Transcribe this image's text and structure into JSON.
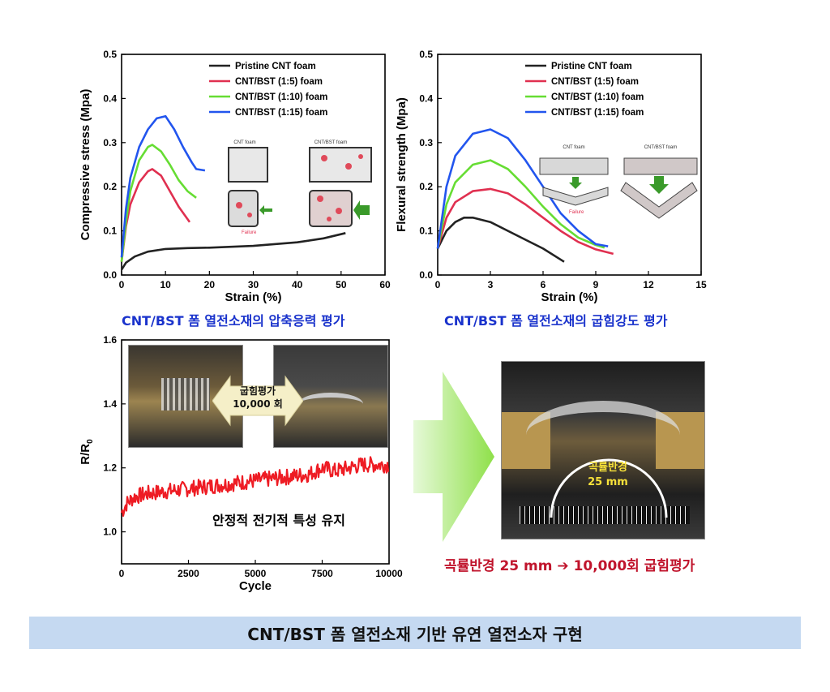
{
  "chart_data": [
    {
      "type": "line",
      "xlabel": "Strain (%)",
      "ylabel": "Compressive stress (Mpa)",
      "xlim": [
        0,
        60
      ],
      "ylim": [
        0,
        0.5
      ],
      "xticks": [
        "0",
        "10",
        "20",
        "30",
        "40",
        "50",
        "60"
      ],
      "yticks": [
        "0.0",
        "0.1",
        "0.2",
        "0.3",
        "0.4",
        "0.5"
      ],
      "legend_position": "top-right",
      "series": [
        {
          "name": "Pristine CNT foam",
          "color": "#222222",
          "x": [
            0,
            1,
            3,
            6,
            10,
            15,
            20,
            30,
            40,
            46,
            51
          ],
          "y": [
            0.012,
            0.028,
            0.042,
            0.053,
            0.059,
            0.061,
            0.062,
            0.066,
            0.074,
            0.083,
            0.095
          ]
        },
        {
          "name": "CNT/BST (1:5) foam",
          "color": "#e03050",
          "x": [
            0,
            1,
            2,
            4,
            6,
            7,
            9,
            11,
            13,
            15.5
          ],
          "y": [
            0.03,
            0.11,
            0.16,
            0.21,
            0.235,
            0.24,
            0.225,
            0.19,
            0.155,
            0.12
          ]
        },
        {
          "name": "CNT/BST (1:10) foam",
          "color": "#66dd33",
          "x": [
            0,
            1,
            2,
            4,
            6,
            7,
            9,
            11,
            13,
            15,
            17
          ],
          "y": [
            0.03,
            0.12,
            0.19,
            0.26,
            0.29,
            0.295,
            0.28,
            0.25,
            0.215,
            0.19,
            0.175
          ]
        },
        {
          "name": "CNT/BST (1:15) foam",
          "color": "#2255ee",
          "x": [
            0,
            1,
            2,
            4,
            6,
            8,
            10,
            12,
            14,
            16,
            17,
            19
          ],
          "y": [
            0.04,
            0.15,
            0.22,
            0.29,
            0.33,
            0.355,
            0.36,
            0.33,
            0.29,
            0.255,
            0.24,
            0.237
          ]
        }
      ],
      "inset": {
        "labels": [
          "CNT foam",
          "CNT/BST foam",
          "Failure"
        ]
      }
    },
    {
      "type": "line",
      "xlabel": "Strain (%)",
      "ylabel": "Flexural strength (Mpa)",
      "xlim": [
        0,
        15
      ],
      "ylim": [
        0,
        0.5
      ],
      "xticks": [
        "0",
        "3",
        "6",
        "9",
        "12",
        "15"
      ],
      "yticks": [
        "0.0",
        "0.1",
        "0.2",
        "0.3",
        "0.4",
        "0.5"
      ],
      "legend_position": "top-right",
      "series": [
        {
          "name": "Pristine CNT foam",
          "color": "#222222",
          "x": [
            0,
            0.5,
            1,
            1.5,
            2,
            3,
            4,
            5,
            6,
            7.2
          ],
          "y": [
            0.06,
            0.1,
            0.12,
            0.13,
            0.13,
            0.12,
            0.1,
            0.08,
            0.06,
            0.03
          ]
        },
        {
          "name": "CNT/BST (1:5) foam",
          "color": "#e03050",
          "x": [
            0,
            0.5,
            1,
            2,
            3,
            4,
            5,
            6,
            7,
            8,
            9,
            10
          ],
          "y": [
            0.06,
            0.13,
            0.165,
            0.19,
            0.195,
            0.185,
            0.16,
            0.13,
            0.1,
            0.075,
            0.058,
            0.048
          ]
        },
        {
          "name": "CNT/BST (1:10) foam",
          "color": "#66dd33",
          "x": [
            0,
            0.5,
            1,
            2,
            3,
            4,
            5,
            6,
            7,
            8,
            9,
            9.5
          ],
          "y": [
            0.06,
            0.16,
            0.21,
            0.25,
            0.26,
            0.24,
            0.2,
            0.155,
            0.115,
            0.085,
            0.068,
            0.062
          ]
        },
        {
          "name": "CNT/BST (1:15) foam",
          "color": "#2255ee",
          "x": [
            0,
            0.5,
            1,
            2,
            3,
            4,
            5,
            6,
            7,
            8,
            9,
            9.7
          ],
          "y": [
            0.06,
            0.2,
            0.27,
            0.32,
            0.33,
            0.31,
            0.26,
            0.2,
            0.14,
            0.1,
            0.07,
            0.065
          ]
        }
      ],
      "inset": {
        "labels": [
          "CNT foam",
          "CNT/BST foam",
          "Failure"
        ]
      }
    },
    {
      "type": "line",
      "xlabel": "Cycle",
      "ylabel": "R/R0",
      "xlim": [
        0,
        10000
      ],
      "ylim": [
        0.9,
        1.6
      ],
      "xticks": [
        "0",
        "2500",
        "5000",
        "7500",
        "10000"
      ],
      "yticks": [
        "1.0",
        "1.2",
        "1.4",
        "1.6"
      ],
      "series": [
        {
          "name": "",
          "color": "#ee1c24",
          "x": [
            0,
            200,
            500,
            1000,
            2000,
            3000,
            4000,
            5000,
            6000,
            7000,
            7500,
            8000,
            9000,
            10000
          ],
          "y": [
            1.06,
            1.09,
            1.11,
            1.12,
            1.13,
            1.14,
            1.15,
            1.16,
            1.17,
            1.18,
            1.2,
            1.19,
            1.21,
            1.21
          ]
        }
      ]
    }
  ],
  "captions": {
    "compressive": "CNT/BST 폼 열전소재의 압축응력 평가",
    "flexural": "CNT/BST 폼 열전소재의 굽힘강도 평가",
    "stable": "안정적 전기적 특성 유지",
    "bend_label_line1": "굽힘평가",
    "bend_label_line2": "10,000 회",
    "radius_line1": "곡률반경",
    "radius_line2": "25 mm",
    "radius_eval": "곡률반경 25 mm ➔ 10,000회 굽힘평가",
    "banner": "CNT/BST 폼 열전소재 기반 유연 열전소자 구현"
  },
  "colors": {
    "caption_blue": "#1a33cc",
    "caption_red": "#c0142c",
    "banner_bg": "#c5d9f1",
    "arrow_green": "#8fe04a"
  }
}
